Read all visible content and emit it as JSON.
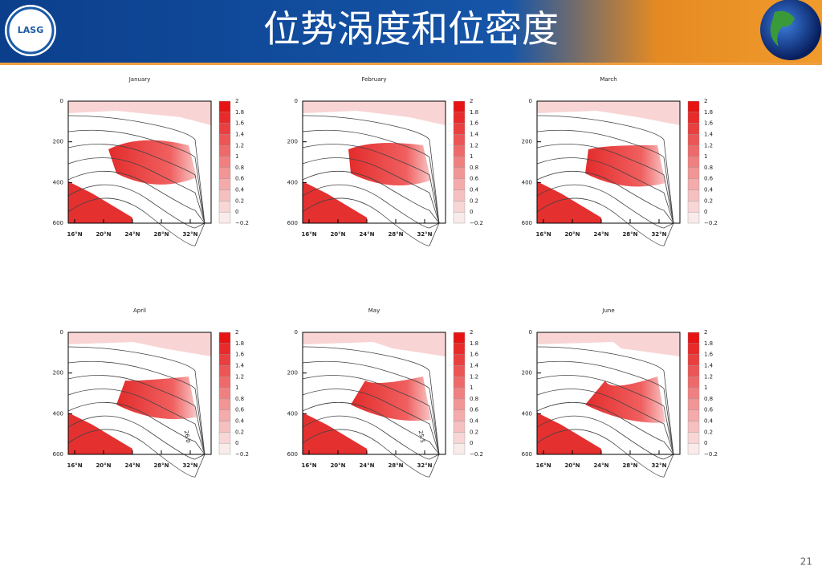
{
  "header": {
    "title": "位势涡度和位密度",
    "logo": "LASG"
  },
  "panels": [
    {
      "title": "January"
    },
    {
      "title": "February"
    },
    {
      "title": "March"
    },
    {
      "title": "April",
      "contour_label": "26.0"
    },
    {
      "title": "May",
      "contour_label": "25.5"
    },
    {
      "title": "June"
    }
  ],
  "y_ticks": [
    "0",
    "200",
    "400",
    "600"
  ],
  "x_ticks": [
    "16°N",
    "20°N",
    "24°N",
    "28°N",
    "32°N"
  ],
  "colorbar": [
    "2",
    "1.8",
    "1.6",
    "1.4",
    "1.2",
    "1",
    "0.8",
    "0.6",
    "0.4",
    "0.2",
    "0",
    "−0.2"
  ],
  "page_number": "21"
}
